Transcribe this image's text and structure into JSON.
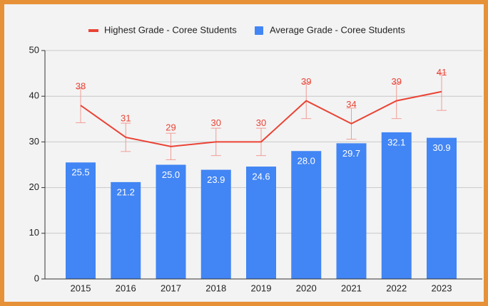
{
  "chart_data": {
    "type": "combo",
    "categories": [
      "2015",
      "2016",
      "2017",
      "2018",
      "2019",
      "2020",
      "2021",
      "2022",
      "2023"
    ],
    "series": [
      {
        "name": "Highest Grade - Coree Students",
        "type": "line",
        "color": "#ea4335",
        "values": [
          38,
          31,
          29,
          30,
          30,
          39,
          34,
          39,
          41
        ],
        "errors": [
          3.8,
          3.1,
          2.9,
          3,
          3,
          3.9,
          3.4,
          3.9,
          4.1
        ]
      },
      {
        "name": "Average Grade - Coree Students",
        "type": "bar",
        "color": "#4285f4",
        "values": [
          25.5,
          21.2,
          25.0,
          23.9,
          24.6,
          28.0,
          29.7,
          32.1,
          30.9
        ],
        "value_labels": [
          "25.5",
          "21.2",
          "25.0",
          "23.9",
          "24.6",
          "28.0",
          "29.7",
          "32.1",
          "30.9"
        ]
      }
    ],
    "ylim": [
      0,
      50
    ],
    "yticks": [
      0,
      10,
      20,
      30,
      40,
      50
    ],
    "grid": true,
    "legend": "top"
  }
}
